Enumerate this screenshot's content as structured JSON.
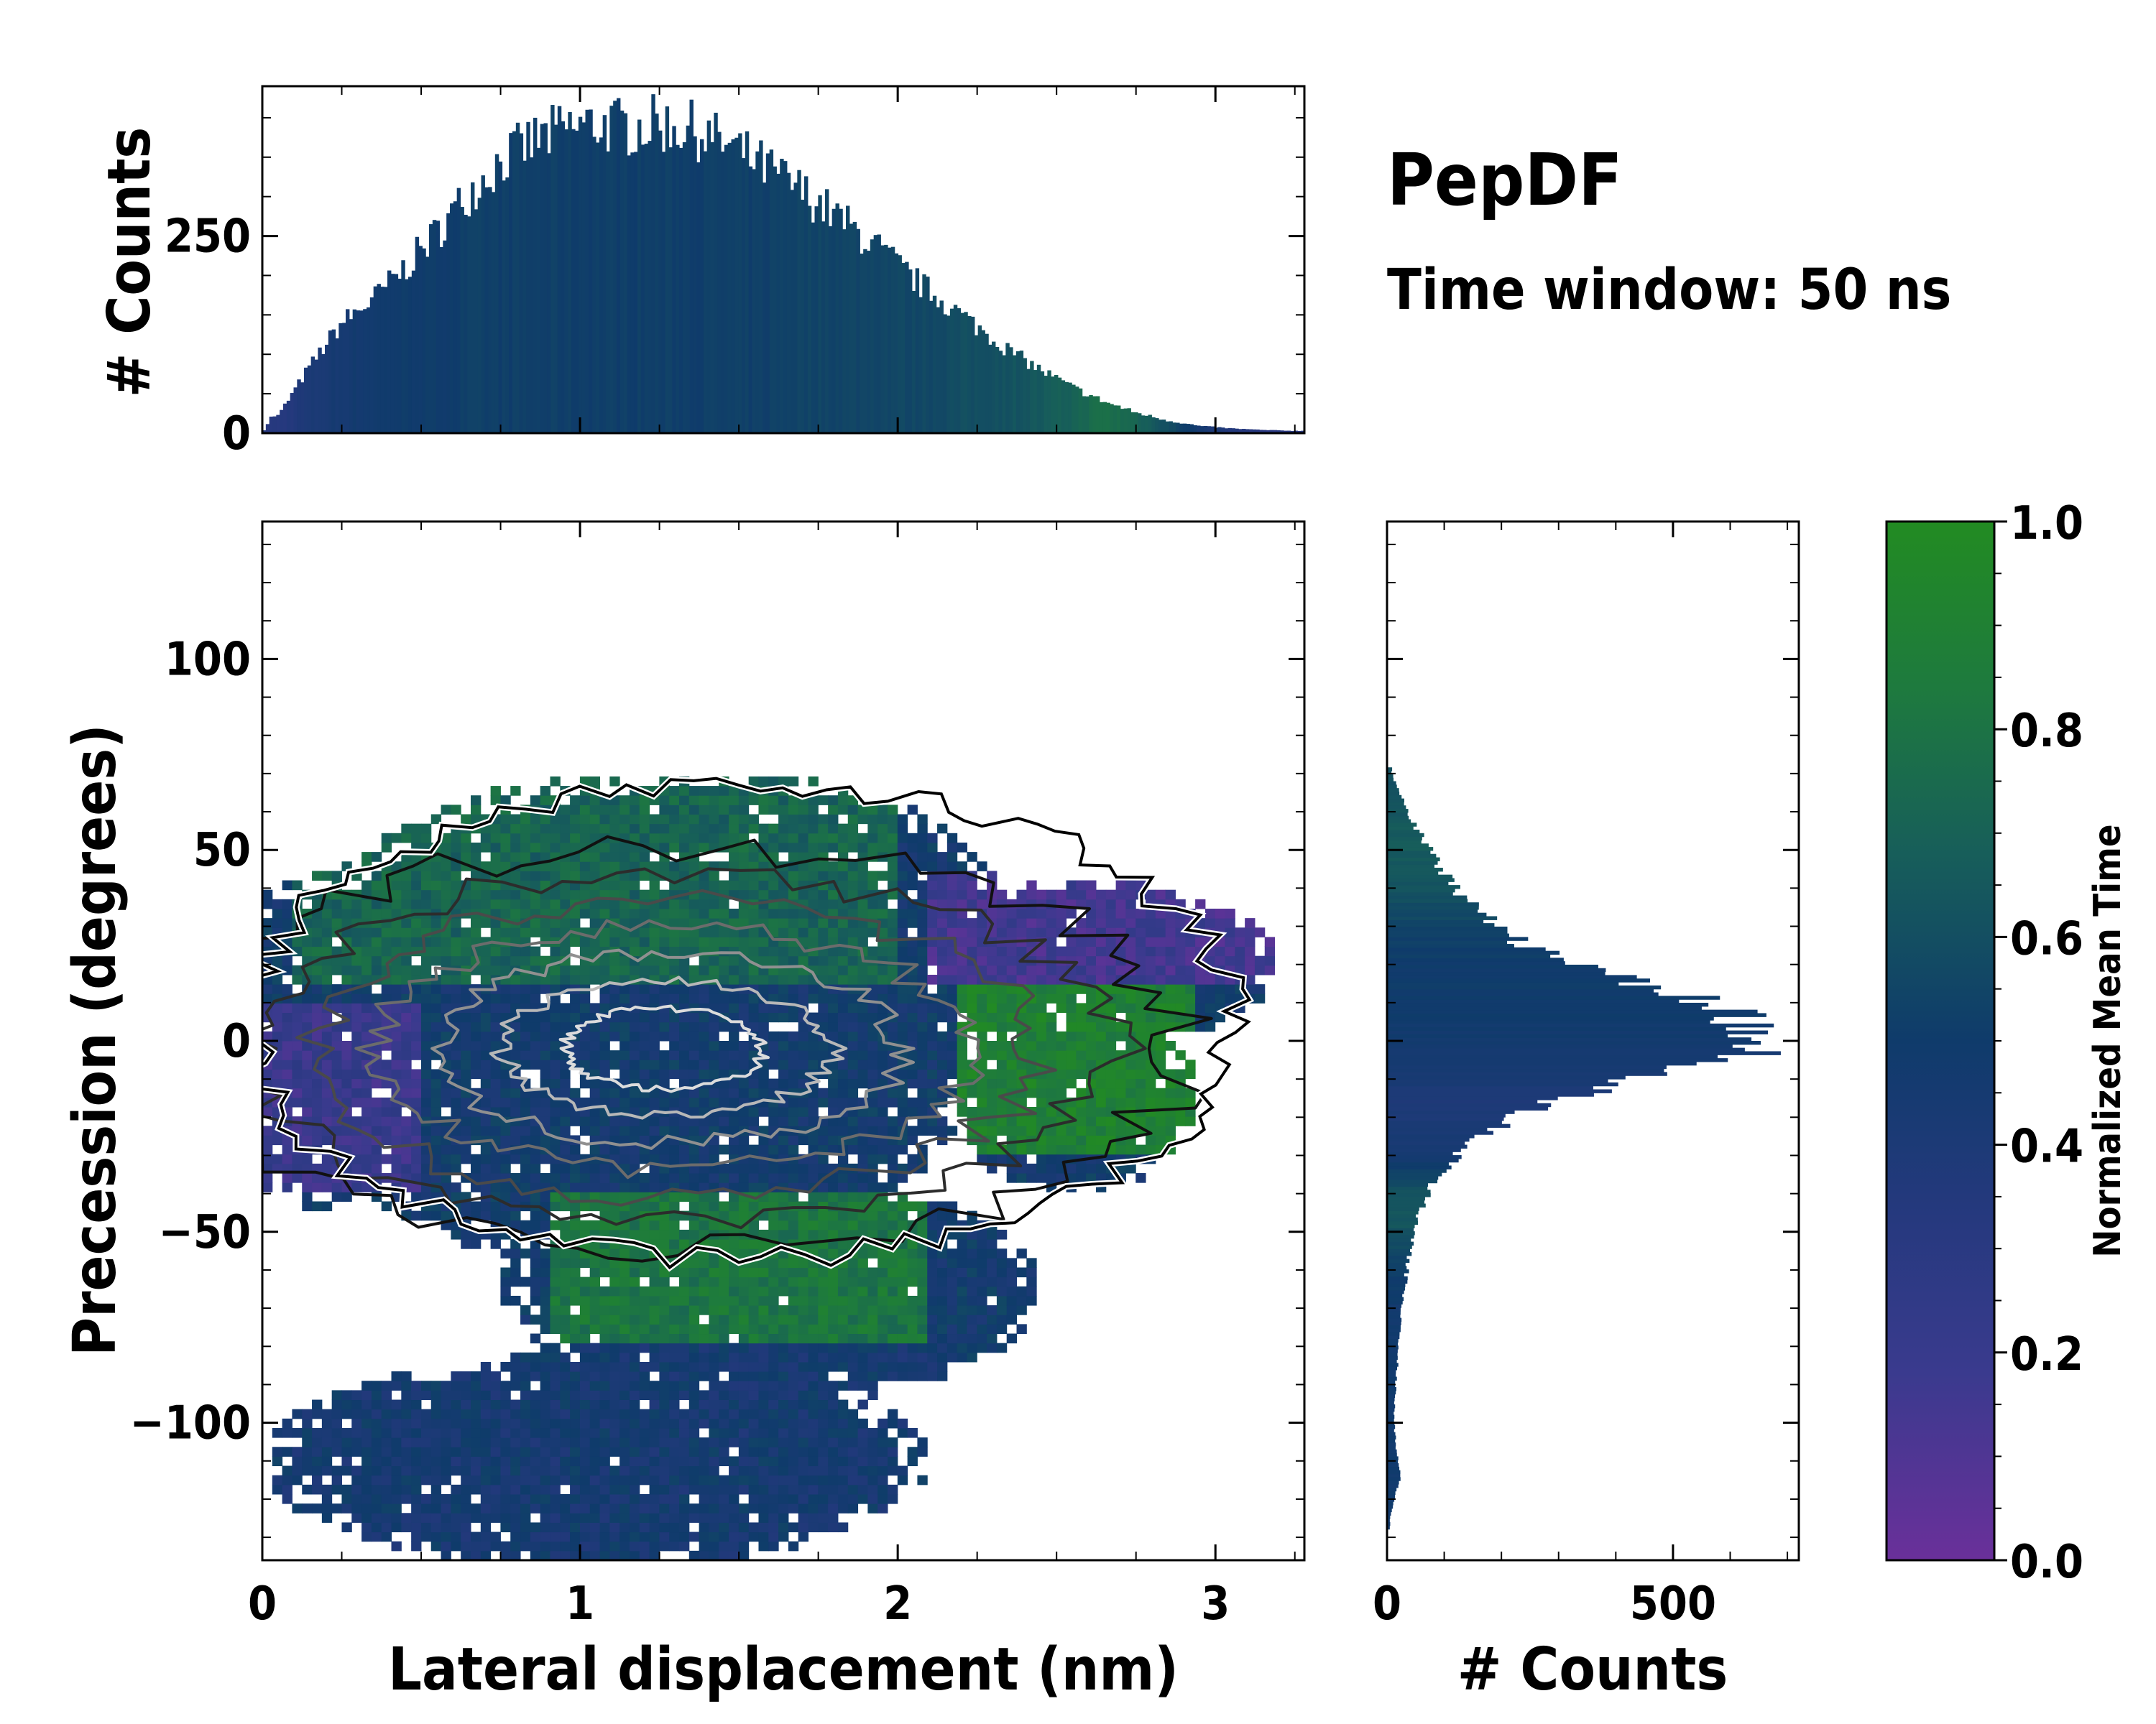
{
  "title": "PepDF",
  "subtitle": "Time window: 50 ns",
  "colors": {
    "cmap": [
      "#6a309a",
      "#3a3a8e",
      "#23397c",
      "#0f3b6b",
      "#175e5a",
      "#1e7a3e",
      "#228b22"
    ],
    "contour": [
      "#111111",
      "#2c2c2c",
      "#4a4a4a",
      "#6c6c6c",
      "#909090",
      "#b8b8b8",
      "#dcdcdc"
    ],
    "edge": "#000000"
  },
  "chart_data": [
    {
      "id": "top-histogram",
      "type": "bar",
      "xlabel": "",
      "ylabel": "# Counts",
      "xlim": [
        0,
        3.28
      ],
      "ylim": [
        0,
        440
      ],
      "yticks": [
        0,
        250
      ],
      "series_description": "Distribution of lateral displacement; bars colored by normalized mean time",
      "x_centers": [
        0.05,
        0.15,
        0.25,
        0.35,
        0.45,
        0.55,
        0.65,
        0.75,
        0.85,
        0.95,
        1.05,
        1.15,
        1.25,
        1.35,
        1.45,
        1.55,
        1.65,
        1.75,
        1.85,
        1.95,
        2.05,
        2.15,
        2.25,
        2.35,
        2.45,
        2.55,
        2.65,
        2.75,
        2.85,
        2.95,
        3.05,
        3.15,
        3.25
      ],
      "values": [
        22,
        85,
        140,
        170,
        210,
        255,
        305,
        345,
        370,
        385,
        392,
        388,
        392,
        385,
        368,
        345,
        320,
        292,
        262,
        230,
        195,
        165,
        135,
        105,
        80,
        58,
        40,
        26,
        16,
        9,
        6,
        4,
        3
      ],
      "color_values": [
        0.32,
        0.4,
        0.45,
        0.48,
        0.5,
        0.5,
        0.52,
        0.52,
        0.52,
        0.52,
        0.52,
        0.52,
        0.52,
        0.52,
        0.52,
        0.52,
        0.54,
        0.55,
        0.55,
        0.56,
        0.56,
        0.58,
        0.6,
        0.62,
        0.65,
        0.7,
        0.78,
        0.72,
        0.6,
        0.45,
        0.35,
        0.3,
        0.3
      ]
    },
    {
      "id": "main-2d-histogram",
      "type": "heatmap",
      "xlabel": "Lateral displacement (nm)",
      "ylabel": "Precession (degrees)",
      "xlim": [
        0,
        3.28
      ],
      "ylim": [
        -136,
        136
      ],
      "xticks": [
        0,
        1,
        2,
        3
      ],
      "yticks": [
        100,
        50,
        0,
        -50,
        -100
      ],
      "ytick_labels": [
        "100",
        "50",
        "0",
        "−50",
        "−100"
      ],
      "density_center": {
        "x": 1.25,
        "y": -2
      },
      "density_spread": {
        "x": 0.65,
        "y": 22
      },
      "regions": [
        {
          "name": "upper-green",
          "x": [
            0.1,
            2.0
          ],
          "y": [
            15,
            70
          ],
          "mean_time": 0.72
        },
        {
          "name": "left-purple",
          "x": [
            0,
            0.5
          ],
          "y": [
            -40,
            10
          ],
          "mean_time": 0.2
        },
        {
          "name": "right-purple",
          "x": [
            2.1,
            3.25
          ],
          "y": [
            15,
            45
          ],
          "mean_time": 0.15
        },
        {
          "name": "right-green",
          "x": [
            2.2,
            2.95
          ],
          "y": [
            -30,
            15
          ],
          "mean_time": 0.9
        },
        {
          "name": "lower-green",
          "x": [
            0.9,
            2.1
          ],
          "y": [
            -80,
            -40
          ],
          "mean_time": 0.82
        },
        {
          "name": "bottom-blue",
          "x": [
            0,
            2.2
          ],
          "y": [
            -136,
            -80
          ],
          "mean_time": 0.45
        }
      ],
      "contour_levels": 7
    },
    {
      "id": "right-histogram",
      "type": "bar",
      "orientation": "horizontal",
      "xlabel": "# Counts",
      "ylabel": "",
      "xlim": [
        0,
        720
      ],
      "xticks": [
        0,
        500
      ],
      "ylim": [
        -136,
        136
      ],
      "y_centers": [
        70,
        65,
        60,
        55,
        50,
        45,
        40,
        35,
        30,
        25,
        20,
        15,
        10,
        5,
        0,
        -5,
        -10,
        -15,
        -20,
        -25,
        -30,
        -35,
        -40,
        -45,
        -50,
        -55,
        -60,
        -65,
        -70,
        -75,
        -80,
        -85,
        -90,
        -95,
        -100,
        -105,
        -110,
        -115,
        -120,
        -125
      ],
      "values": [
        8,
        22,
        35,
        55,
        75,
        95,
        120,
        150,
        190,
        240,
        330,
        440,
        580,
        640,
        670,
        600,
        440,
        310,
        220,
        160,
        120,
        90,
        70,
        55,
        45,
        40,
        35,
        30,
        25,
        22,
        20,
        18,
        15,
        14,
        12,
        15,
        20,
        25,
        12,
        5
      ],
      "color_values": [
        0.6,
        0.62,
        0.64,
        0.66,
        0.66,
        0.64,
        0.62,
        0.58,
        0.55,
        0.52,
        0.5,
        0.5,
        0.5,
        0.48,
        0.48,
        0.45,
        0.42,
        0.4,
        0.4,
        0.42,
        0.45,
        0.55,
        0.62,
        0.65,
        0.62,
        0.56,
        0.52,
        0.5,
        0.48,
        0.48,
        0.48,
        0.48,
        0.48,
        0.48,
        0.48,
        0.48,
        0.48,
        0.48,
        0.48,
        0.48
      ]
    },
    {
      "id": "colorbar",
      "type": "colorbar",
      "label": "Normalized Mean Time",
      "range": [
        0,
        1
      ],
      "ticks": [
        0.0,
        0.2,
        0.4,
        0.6,
        0.8,
        1.0
      ],
      "tick_labels": [
        "0.0",
        "0.2",
        "0.4",
        "0.6",
        "0.8",
        "1.0"
      ]
    }
  ]
}
